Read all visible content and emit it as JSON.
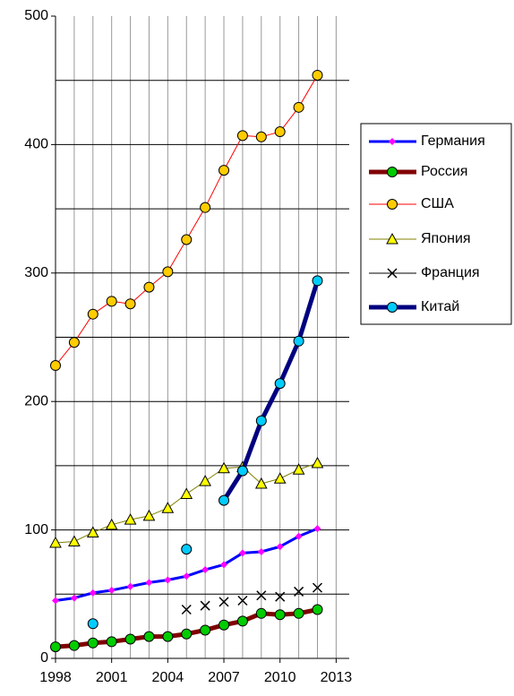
{
  "chart_data": {
    "type": "line",
    "x": [
      1998,
      1999,
      2000,
      2001,
      2002,
      2003,
      2004,
      2005,
      2006,
      2007,
      2008,
      2009,
      2010,
      2011,
      2012
    ],
    "xlim": [
      1998,
      2013.7
    ],
    "xticks": [
      1998,
      2001,
      2004,
      2007,
      2010,
      2013
    ],
    "xgrid": [
      1999,
      2000,
      2001,
      2002,
      2003,
      2004,
      2005,
      2006,
      2007,
      2008,
      2009,
      2010,
      2011,
      2012,
      2013
    ],
    "ylim": [
      0,
      500
    ],
    "yticks": [
      0,
      100,
      200,
      300,
      400,
      500
    ],
    "ygrid": [
      50,
      100,
      150,
      200,
      250,
      300,
      350,
      400,
      450
    ],
    "grid": true,
    "legend": "right",
    "series": [
      {
        "name": "Германия",
        "color": "#0000ff",
        "marker_color": "#ff00ff",
        "marker": "diamond",
        "line_width": 3,
        "values": [
          45,
          47,
          51,
          53,
          56,
          59,
          61,
          64,
          69,
          73,
          82,
          83,
          87,
          95,
          101
        ]
      },
      {
        "name": "Россия",
        "color": "#800000",
        "marker_color": "#00cc00",
        "marker": "circle",
        "line_width": 5,
        "values": [
          9,
          10,
          12,
          13,
          15,
          17,
          17,
          19,
          22,
          26,
          29,
          35,
          34,
          35,
          38
        ]
      },
      {
        "name": "США",
        "color": "#ff0000",
        "marker_color": "#ffcc00",
        "marker": "circle",
        "line_width": 1,
        "values": [
          228,
          246,
          268,
          278,
          276,
          289,
          301,
          326,
          351,
          380,
          407,
          406,
          410,
          429,
          454
        ]
      },
      {
        "name": "Япония",
        "color": "#808000",
        "marker_color": "#ffff00",
        "marker": "triangle",
        "line_width": 1,
        "values": [
          90,
          91,
          98,
          104,
          108,
          111,
          117,
          128,
          138,
          148,
          149,
          136,
          140,
          147,
          152
        ]
      },
      {
        "name": "Франция",
        "color": "#000000",
        "marker_color": "#000000",
        "marker": "x",
        "line_width": 0,
        "values": [
          null,
          null,
          null,
          null,
          null,
          null,
          null,
          38,
          41,
          44,
          45,
          49,
          48,
          52,
          55
        ]
      },
      {
        "name": "Китай",
        "color": "#000080",
        "marker_color": "#00ccff",
        "marker": "circle",
        "line_width": 5,
        "values": [
          null,
          null,
          27,
          null,
          null,
          null,
          null,
          85,
          null,
          123,
          146,
          185,
          214,
          247,
          294
        ]
      }
    ]
  }
}
